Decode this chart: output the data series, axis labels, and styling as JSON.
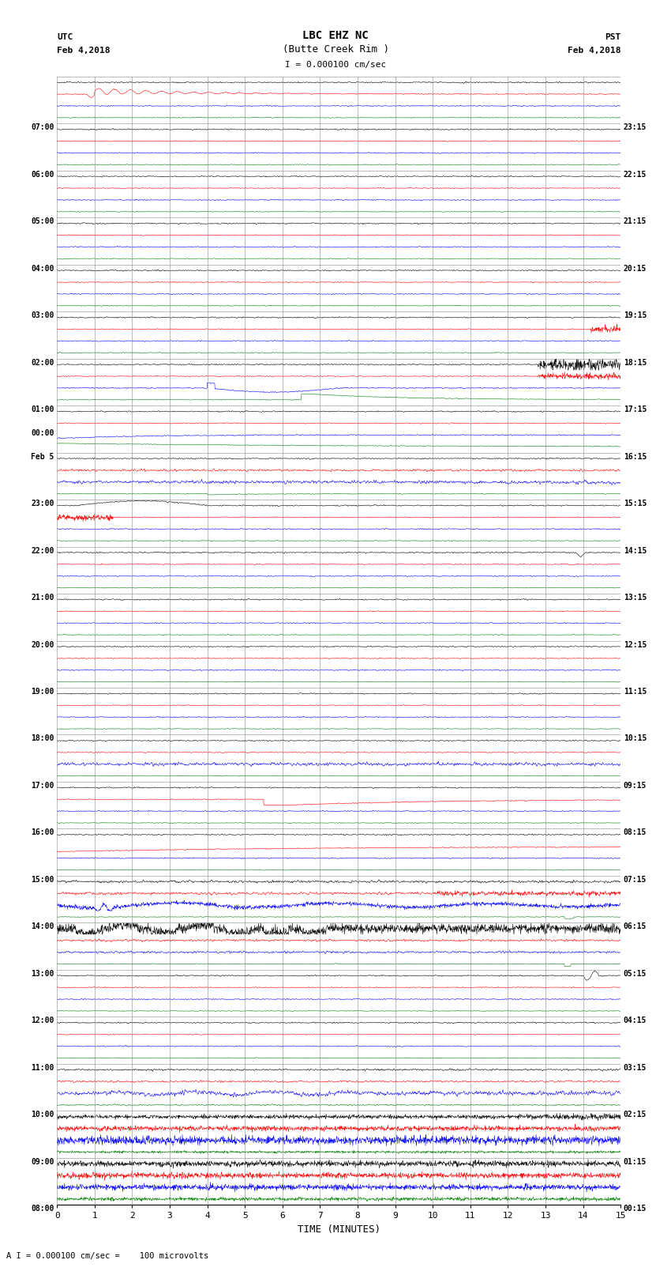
{
  "title_line1": "LBC EHZ NC",
  "title_line2": "(Butte Creek Rim )",
  "scale_text": "I = 0.000100 cm/sec",
  "left_label_top": "UTC",
  "left_label_date": "Feb 4,2018",
  "right_label_top": "PST",
  "right_label_date": "Feb 4,2018",
  "xlabel": "TIME (MINUTES)",
  "bottom_note": "A I = 0.000100 cm/sec =    100 microvolts",
  "utc_hour_labels": [
    "08:00",
    "09:00",
    "10:00",
    "11:00",
    "12:00",
    "13:00",
    "14:00",
    "15:00",
    "16:00",
    "17:00",
    "18:00",
    "19:00",
    "20:00",
    "21:00",
    "22:00",
    "23:00",
    "Feb 5\n00:00",
    "01:00",
    "02:00",
    "03:00",
    "04:00",
    "05:00",
    "06:00",
    "07:00"
  ],
  "pst_hour_labels": [
    "00:15",
    "01:15",
    "02:15",
    "03:15",
    "04:15",
    "05:15",
    "06:15",
    "07:15",
    "08:15",
    "09:15",
    "10:15",
    "11:15",
    "12:15",
    "13:15",
    "14:15",
    "15:15",
    "16:15",
    "17:15",
    "18:15",
    "19:15",
    "20:15",
    "21:15",
    "22:15",
    "23:15"
  ],
  "n_hours": 24,
  "n_traces_per_hour": 4,
  "trace_colors": [
    "black",
    "red",
    "blue",
    "green"
  ],
  "bg_color": "white",
  "grid_color": "#888888",
  "x_ticks": [
    0,
    1,
    2,
    3,
    4,
    5,
    6,
    7,
    8,
    9,
    10,
    11,
    12,
    13,
    14,
    15
  ],
  "x_min": 0,
  "x_max": 15
}
